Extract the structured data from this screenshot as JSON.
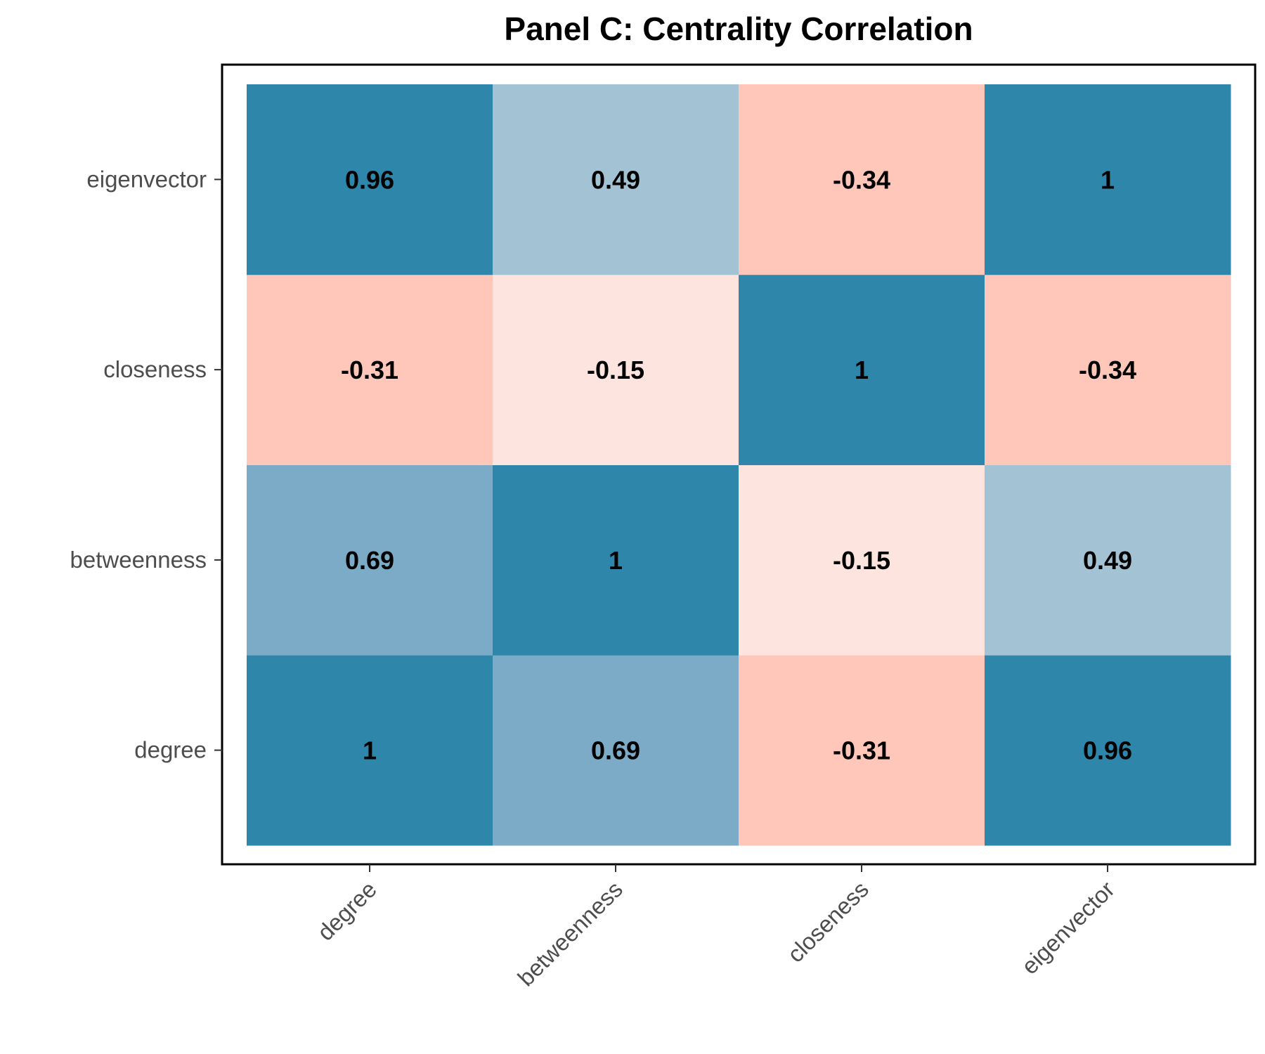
{
  "chart_data": {
    "type": "heatmap",
    "title": "Panel C: Centrality Correlation",
    "xlabel": "",
    "ylabel": "",
    "x_categories": [
      "degree",
      "betweenness",
      "closeness",
      "eigenvector"
    ],
    "y_categories": [
      "degree",
      "betweenness",
      "closeness",
      "eigenvector"
    ],
    "values": [
      [
        1,
        0.69,
        -0.31,
        0.96
      ],
      [
        0.69,
        1,
        -0.15,
        0.49
      ],
      [
        -0.31,
        -0.15,
        1,
        -0.34
      ],
      [
        0.96,
        0.49,
        -0.34,
        1
      ]
    ],
    "value_labels": [
      [
        "1",
        "0.69",
        "-0.31",
        "0.96"
      ],
      [
        "0.69",
        "1",
        "-0.15",
        "0.49"
      ],
      [
        "-0.31",
        "-0.15",
        "1",
        "-0.34"
      ],
      [
        "0.96",
        "0.49",
        "-0.34",
        "1"
      ]
    ],
    "y_order": "bottom-to-top",
    "x_tick_rotation": "45 degrees",
    "grid": false,
    "legend": "none",
    "colors": {
      "high_positive": "#2e86ab",
      "moderate_positive": "#7babc7",
      "weak_positive": "#a3c3d5",
      "weak_negative": "#fee4de",
      "moderate_negative": "#ffc7b9"
    }
  }
}
